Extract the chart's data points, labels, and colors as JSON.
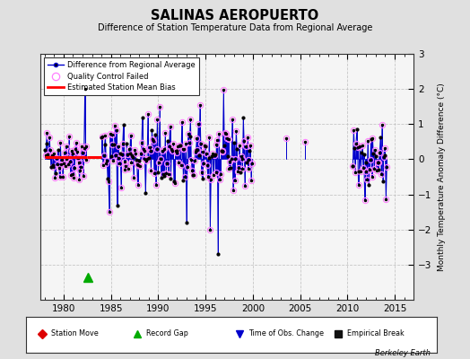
{
  "title": "SALINAS AEROPUERTO",
  "subtitle": "Difference of Station Temperature Data from Regional Average",
  "ylabel": "Monthly Temperature Anomaly Difference (°C)",
  "xlim": [
    1977.5,
    2017.0
  ],
  "ylim": [
    -4,
    3
  ],
  "yticks_right": [
    -3,
    -2,
    -1,
    0,
    1,
    2,
    3
  ],
  "xticks": [
    1980,
    1985,
    1990,
    1995,
    2000,
    2005,
    2010,
    2015
  ],
  "bg_color": "#e0e0e0",
  "plot_bg": "#f5f5f5",
  "bias_color": "#ff0000",
  "line_color": "#0000cc",
  "dot_color": "#000000",
  "qc_color": "#ff80ff",
  "record_gap_x": 1982.6,
  "record_gap_y": -3.35,
  "bias_x1": 1978.0,
  "bias_x2": 1982.5,
  "bias_y": 0.07,
  "bias_x3": 1982.5,
  "bias_x4": 1984.0,
  "bias_y2": 0.07,
  "berkeley_earth_text": "Berkeley Earth"
}
